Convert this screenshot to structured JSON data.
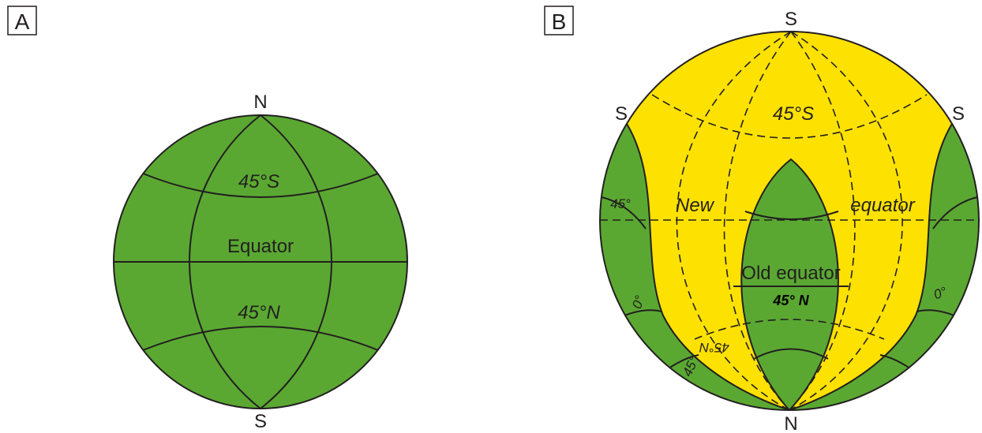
{
  "panel_a": {
    "label": "A",
    "north": "N",
    "south": "S",
    "lat_upper": "45°S",
    "equator": "Equator",
    "lat_lower": "45°N"
  },
  "panel_b": {
    "label": "B",
    "south_top": "S",
    "south_left": "S",
    "south_right": "S",
    "north_bottom": "N",
    "lat_45s": "45°S",
    "new_word": "New",
    "equator_word": "equator",
    "old_equator": "Old equator",
    "lat_45n": "45° N",
    "lat_45n_mirrored": "45°N",
    "left_45": "45°",
    "right_0": "0°",
    "left_0": "0°",
    "bottom_45": "45°"
  },
  "colors": {
    "green": "#5aa832",
    "yellow": "#fde100",
    "outline": "#231f20"
  }
}
